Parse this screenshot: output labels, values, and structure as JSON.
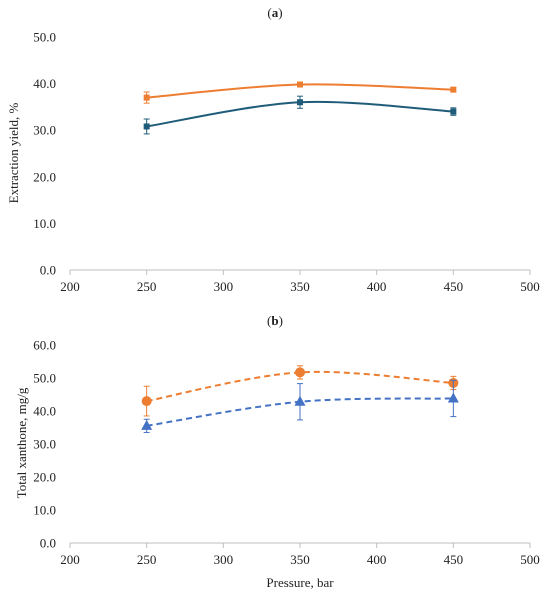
{
  "chart_data": [
    {
      "panel_label": "(a)",
      "panel_letter": "a",
      "type": "line",
      "title": "",
      "xlabel": "",
      "ylabel": "Extraction yield, %",
      "xlim": [
        200,
        500
      ],
      "ylim": [
        0,
        50
      ],
      "xticks": [
        "200",
        "250",
        "300",
        "350",
        "400",
        "450",
        "500"
      ],
      "yticks": [
        "0.0",
        "10.0",
        "20.0",
        "30.0",
        "40.0",
        "50.0"
      ],
      "grid": false,
      "legend": "none",
      "series": [
        {
          "color": "#ED7D31",
          "marker": "square",
          "line": "solid-smooth",
          "x": [
            250,
            350,
            450
          ],
          "y": [
            37.0,
            39.8,
            38.7
          ],
          "yerr": [
            1.2,
            0.4,
            0.4
          ]
        },
        {
          "color": "#1F5C7A",
          "marker": "square",
          "line": "solid-smooth",
          "x": [
            250,
            350,
            450
          ],
          "y": [
            30.8,
            36.0,
            34.0
          ],
          "yerr": [
            1.6,
            1.3,
            0.8
          ]
        }
      ]
    },
    {
      "panel_label": "(b)",
      "panel_letter": "b",
      "type": "line",
      "title": "",
      "xlabel": "Pressure, bar",
      "ylabel": "Total xanthone, mg/g",
      "xlim": [
        200,
        500
      ],
      "ylim": [
        0,
        60
      ],
      "xticks": [
        "200",
        "250",
        "300",
        "350",
        "400",
        "450",
        "500"
      ],
      "yticks": [
        "0.0",
        "10.0",
        "20.0",
        "30.0",
        "40.0",
        "50.0",
        "60.0"
      ],
      "grid": false,
      "legend": "none",
      "series": [
        {
          "color": "#ED7D31",
          "marker": "circle",
          "line": "dashed-smooth",
          "x": [
            250,
            350,
            450
          ],
          "y": [
            43.0,
            51.7,
            48.5
          ],
          "yerr": [
            4.5,
            2.0,
            2.0
          ]
        },
        {
          "color": "#4472C4",
          "marker": "triangle",
          "line": "dashed-smooth",
          "x": [
            250,
            350,
            450
          ],
          "y": [
            35.5,
            42.8,
            43.8
          ],
          "yerr": [
            2.0,
            5.5,
            5.5
          ]
        }
      ]
    }
  ]
}
